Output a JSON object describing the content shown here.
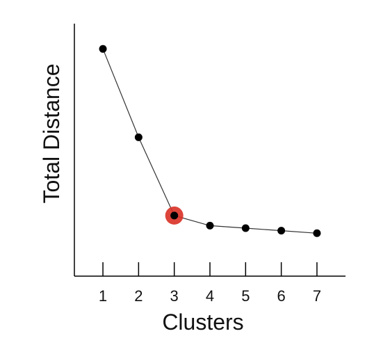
{
  "chart_data": {
    "type": "line",
    "title": "",
    "xlabel": "Clusters",
    "ylabel": "Total Distance",
    "x": [
      1,
      2,
      3,
      4,
      5,
      6,
      7
    ],
    "x_tick_labels": [
      "1",
      "2",
      "3",
      "4",
      "5",
      "6",
      "7"
    ],
    "series": [
      {
        "values": [
          0.9,
          0.55,
          0.24,
          0.2,
          0.19,
          0.18,
          0.17
        ]
      }
    ],
    "highlight": {
      "x": 3,
      "color": "#d93025"
    },
    "xlim": [
      0.2,
      7.8
    ],
    "ylim": [
      0,
      1
    ],
    "grid": false,
    "y_ticks_shown": false,
    "colors": {
      "line": "#333333",
      "marker": "#000000",
      "axis": "#000000"
    }
  }
}
